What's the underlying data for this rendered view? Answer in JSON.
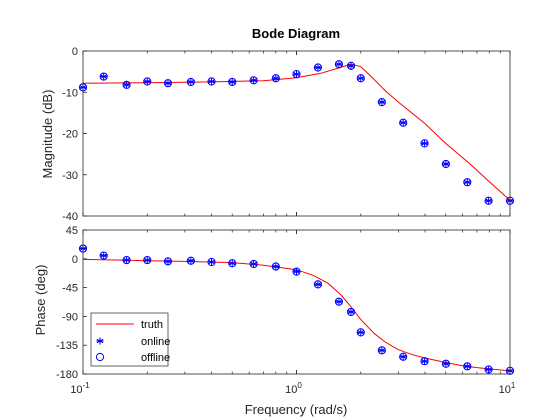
{
  "chart_data": {
    "type": "line",
    "title": "Bode Diagram",
    "xlabel": "Frequency  (rad/s)",
    "xscale": "log",
    "xlim": [
      0.1,
      10
    ],
    "x_ticks": [
      {
        "value": 0.1,
        "base": "10",
        "exp": "-1"
      },
      {
        "value": 1,
        "base": "10",
        "exp": "0"
      },
      {
        "value": 10,
        "base": "10",
        "exp": "1"
      }
    ],
    "magnitude": {
      "ylabel": "Magnitude (dB)",
      "ylim": [
        -40,
        0
      ],
      "yticks": [
        "0",
        "-10",
        "-20",
        "-30",
        "-40"
      ],
      "truth": {
        "x": [
          0.1,
          0.2,
          0.4,
          0.7,
          1.0,
          1.3,
          1.6,
          1.8,
          2.0,
          2.3,
          2.6,
          3.0,
          4.0,
          5.0,
          6.5,
          8.0,
          10.0
        ],
        "y": [
          -7.8,
          -7.7,
          -7.5,
          -7.2,
          -6.5,
          -5.4,
          -4.0,
          -3.2,
          -3.8,
          -6.8,
          -9.6,
          -12.4,
          -17.6,
          -22.4,
          -27.4,
          -31.7,
          -36.2
        ]
      },
      "online": {
        "x": [
          0.1,
          0.125,
          0.16,
          0.2,
          0.25,
          0.32,
          0.4,
          0.5,
          0.63,
          0.8,
          1.0,
          1.26,
          1.58,
          1.8,
          2.0,
          2.51,
          3.16,
          3.98,
          5.01,
          6.31,
          7.94,
          10.0
        ],
        "y": [
          -8.8,
          -6.2,
          -8.2,
          -7.4,
          -7.8,
          -7.5,
          -7.4,
          -7.5,
          -7.1,
          -6.6,
          -5.6,
          -4.0,
          -3.2,
          -3.6,
          -6.6,
          -12.4,
          -17.4,
          -22.4,
          -27.4,
          -31.8,
          -36.3,
          -36.3
        ]
      },
      "offline": {
        "x": [
          0.1,
          0.125,
          0.16,
          0.2,
          0.25,
          0.32,
          0.4,
          0.5,
          0.63,
          0.8,
          1.0,
          1.26,
          1.58,
          1.8,
          2.0,
          2.51,
          3.16,
          3.98,
          5.01,
          6.31,
          7.94,
          10.0
        ],
        "y": [
          -8.8,
          -6.2,
          -8.2,
          -7.4,
          -7.8,
          -7.5,
          -7.4,
          -7.5,
          -7.1,
          -6.6,
          -5.6,
          -4.0,
          -3.2,
          -3.6,
          -6.6,
          -12.4,
          -17.4,
          -22.4,
          -27.4,
          -31.8,
          -36.3,
          -36.3
        ]
      }
    },
    "phase": {
      "ylabel": "Phase (deg)",
      "ylim": [
        -180,
        45
      ],
      "yticks": [
        "45",
        "0",
        "-45",
        "-90",
        "-135",
        "-180"
      ],
      "truth": {
        "x": [
          0.1,
          0.2,
          0.3,
          0.5,
          0.7,
          1.0,
          1.2,
          1.4,
          1.6,
          1.8,
          2.0,
          2.3,
          2.6,
          3.0,
          3.5,
          4.0,
          5.0,
          6.0,
          7.0,
          8.0,
          10.0
        ],
        "y": [
          -1,
          -3,
          -4,
          -6,
          -10,
          -17,
          -26,
          -38,
          -55,
          -75,
          -95,
          -116,
          -130,
          -142,
          -150,
          -155,
          -162,
          -167,
          -170,
          -172,
          -175
        ]
      },
      "online": {
        "x": [
          0.1,
          0.125,
          0.16,
          0.2,
          0.25,
          0.32,
          0.4,
          0.5,
          0.63,
          0.8,
          1.0,
          1.26,
          1.58,
          1.8,
          2.0,
          2.51,
          3.16,
          3.98,
          5.01,
          6.31,
          7.94,
          10.0
        ],
        "y": [
          16,
          5,
          -2,
          -2,
          -4,
          -3,
          -5,
          -7,
          -8,
          -12,
          -20,
          -40,
          -67,
          -83,
          -115,
          -143,
          -153,
          -160,
          -164,
          -168,
          -173,
          -175
        ]
      },
      "offline": {
        "x": [
          0.1,
          0.125,
          0.16,
          0.2,
          0.25,
          0.32,
          0.4,
          0.5,
          0.63,
          0.8,
          1.0,
          1.26,
          1.58,
          1.8,
          2.0,
          2.51,
          3.16,
          3.98,
          5.01,
          6.31,
          7.94,
          10.0
        ],
        "y": [
          16,
          5,
          -2,
          -2,
          -4,
          -3,
          -5,
          -7,
          -8,
          -12,
          -20,
          -40,
          -67,
          -83,
          -115,
          -143,
          -153,
          -160,
          -164,
          -168,
          -173,
          -175
        ]
      }
    },
    "legend": {
      "placement": "bottom-left",
      "entries": [
        {
          "name": "truth",
          "marker": "line",
          "color": "#ff0000"
        },
        {
          "name": "online",
          "marker": "asterisk",
          "color": "#0000ff"
        },
        {
          "name": "offline",
          "marker": "circle",
          "color": "#0000ff"
        }
      ]
    }
  }
}
